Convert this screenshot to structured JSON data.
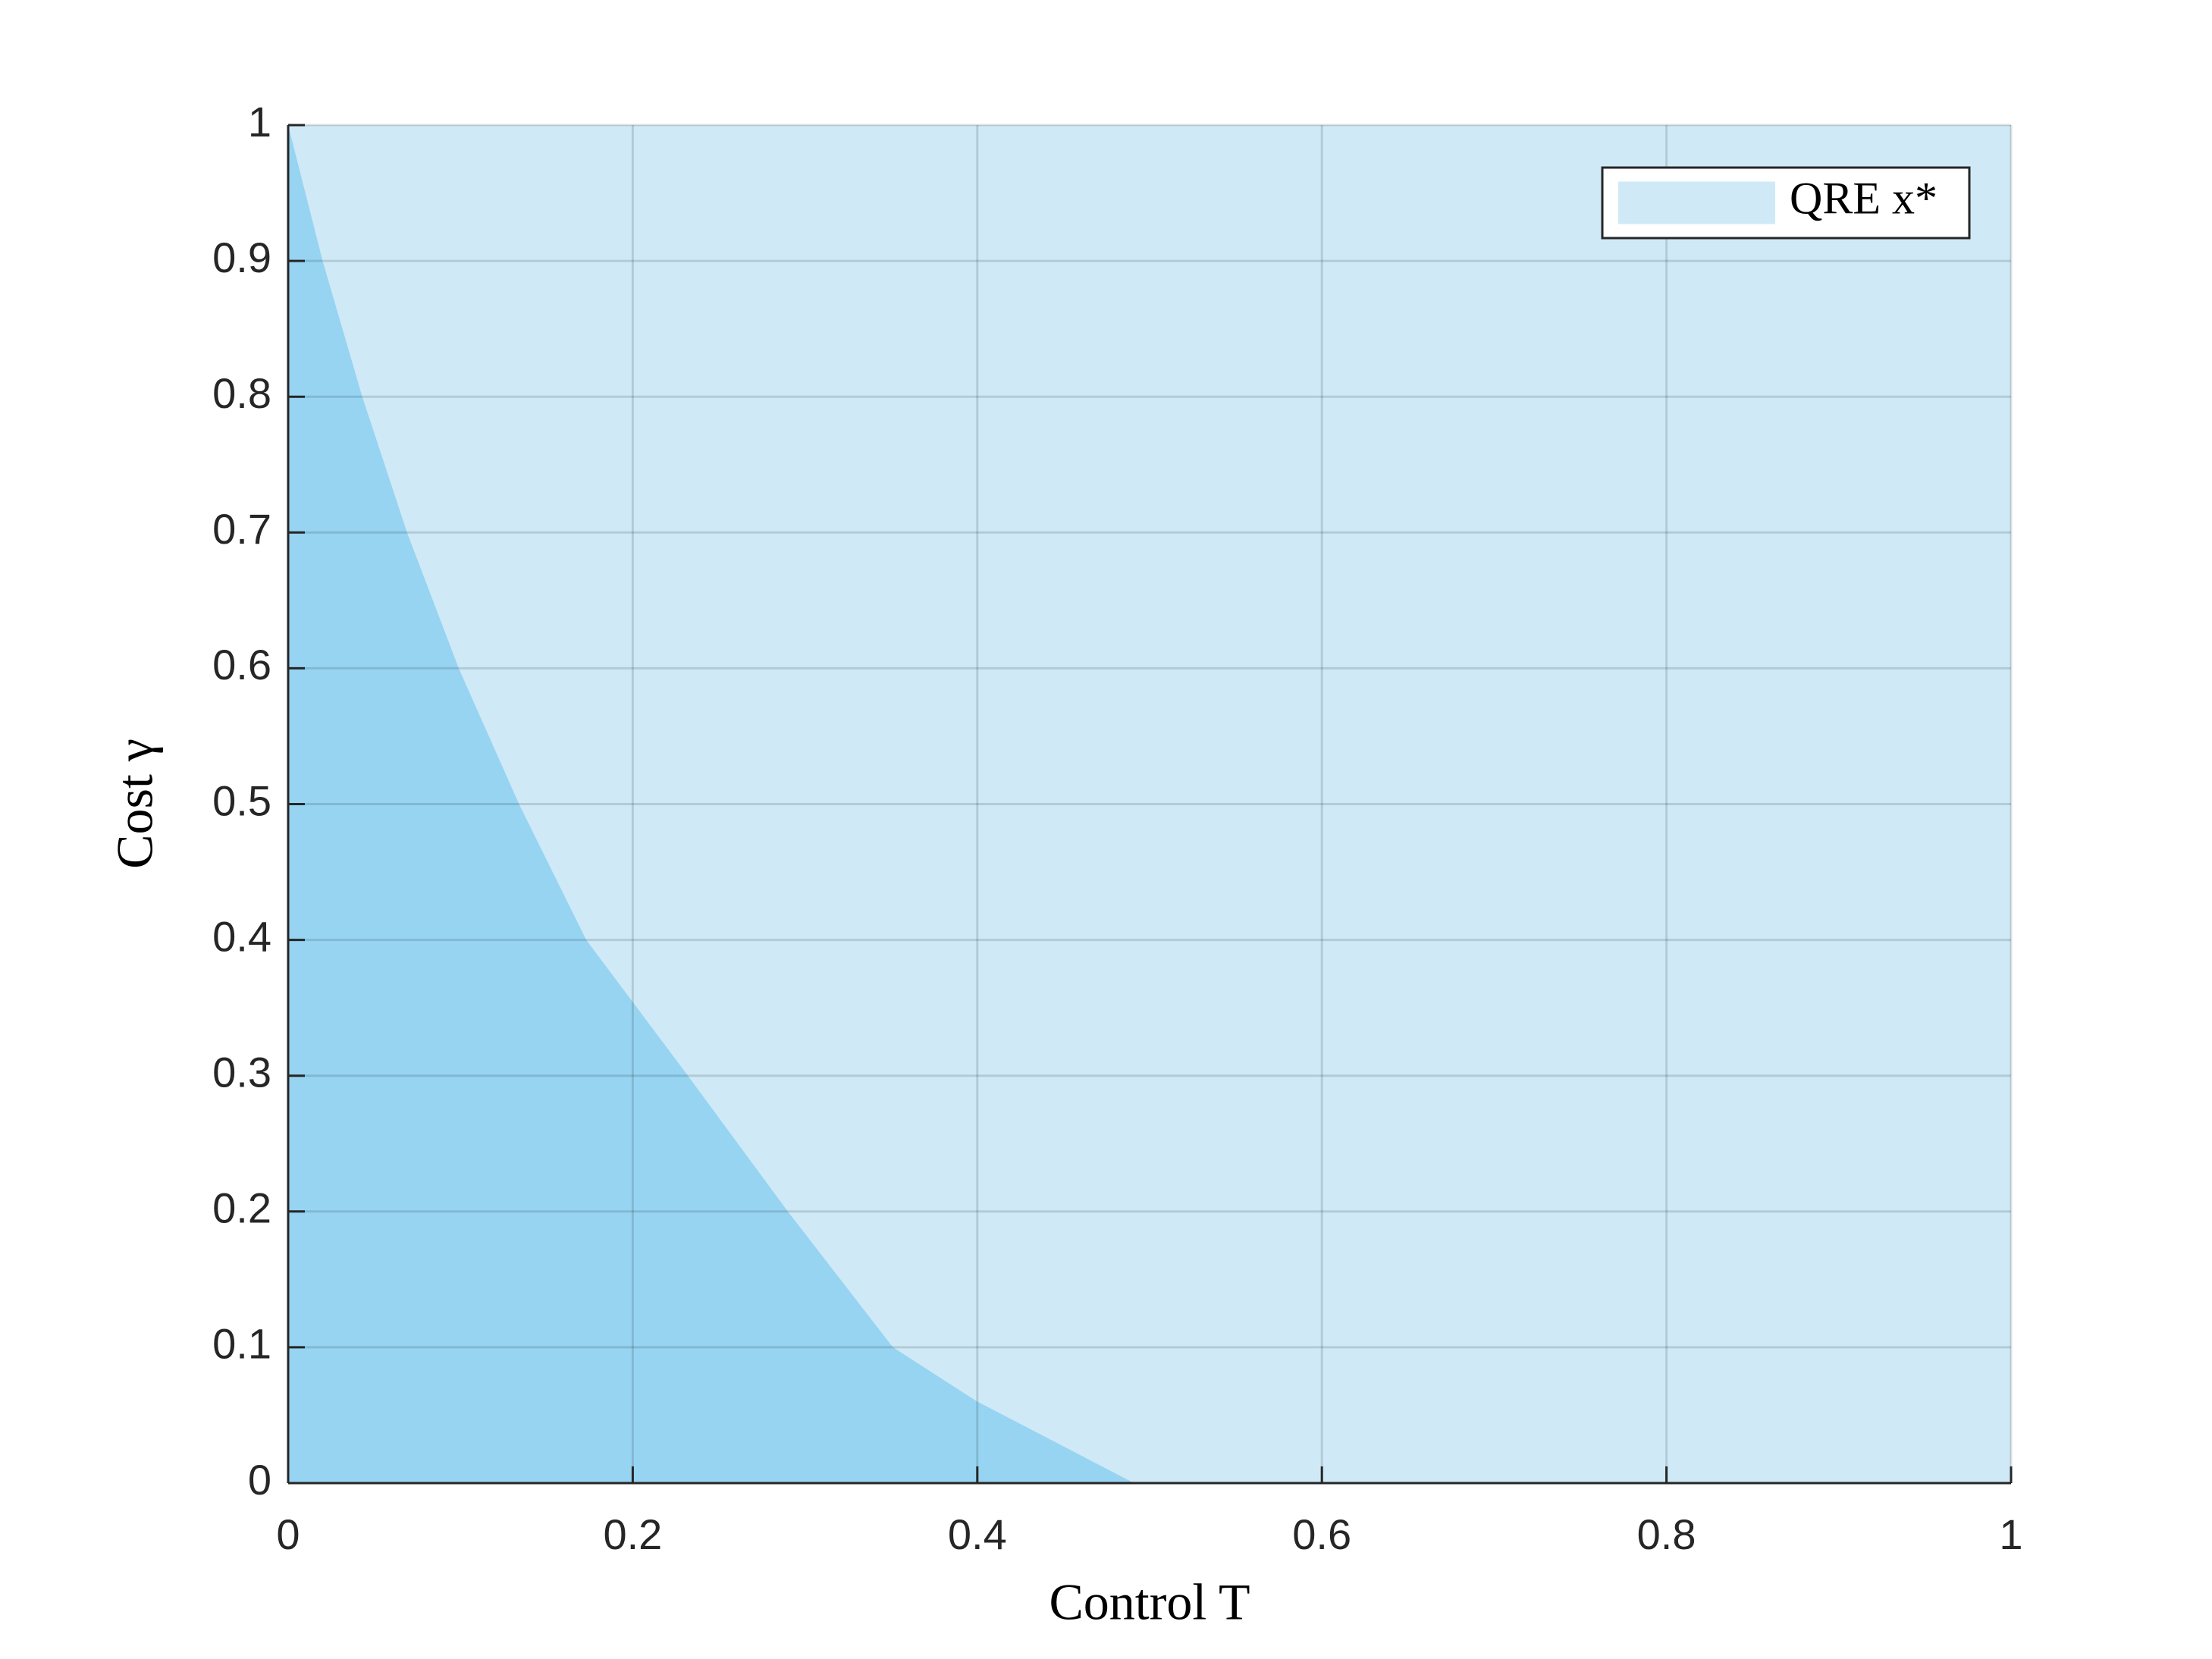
{
  "chart_data": {
    "type": "area",
    "xlabel": "Control T",
    "ylabel": "Cost γ",
    "x": [
      0,
      0.02,
      0.043,
      0.069,
      0.099,
      0.134,
      0.173,
      0.232,
      0.29,
      0.351,
      0.4,
      0.491,
      0.6,
      0.8,
      1
    ],
    "series": [
      {
        "name": "QRE x*",
        "color": "#cfe9f7",
        "values": [
          1,
          1,
          1,
          1,
          1,
          1,
          1,
          1,
          1,
          1,
          1,
          1,
          1,
          1,
          1
        ]
      },
      {
        "color": "#96d4f2",
        "values": [
          1,
          0.9,
          0.8,
          0.7,
          0.6,
          0.5,
          0.4,
          0.3,
          0.2,
          0.1,
          0.06,
          0,
          0,
          0,
          0
        ]
      }
    ],
    "xlim": [
      0,
      1
    ],
    "ylim": [
      0,
      1
    ],
    "xticks": [
      0,
      0.2,
      0.4,
      0.6,
      0.8,
      1
    ],
    "yticks": [
      0,
      0.1,
      0.2,
      0.3,
      0.4,
      0.5,
      0.6,
      0.7,
      0.8,
      0.9,
      1
    ],
    "grid": true,
    "legend": "upper right"
  }
}
